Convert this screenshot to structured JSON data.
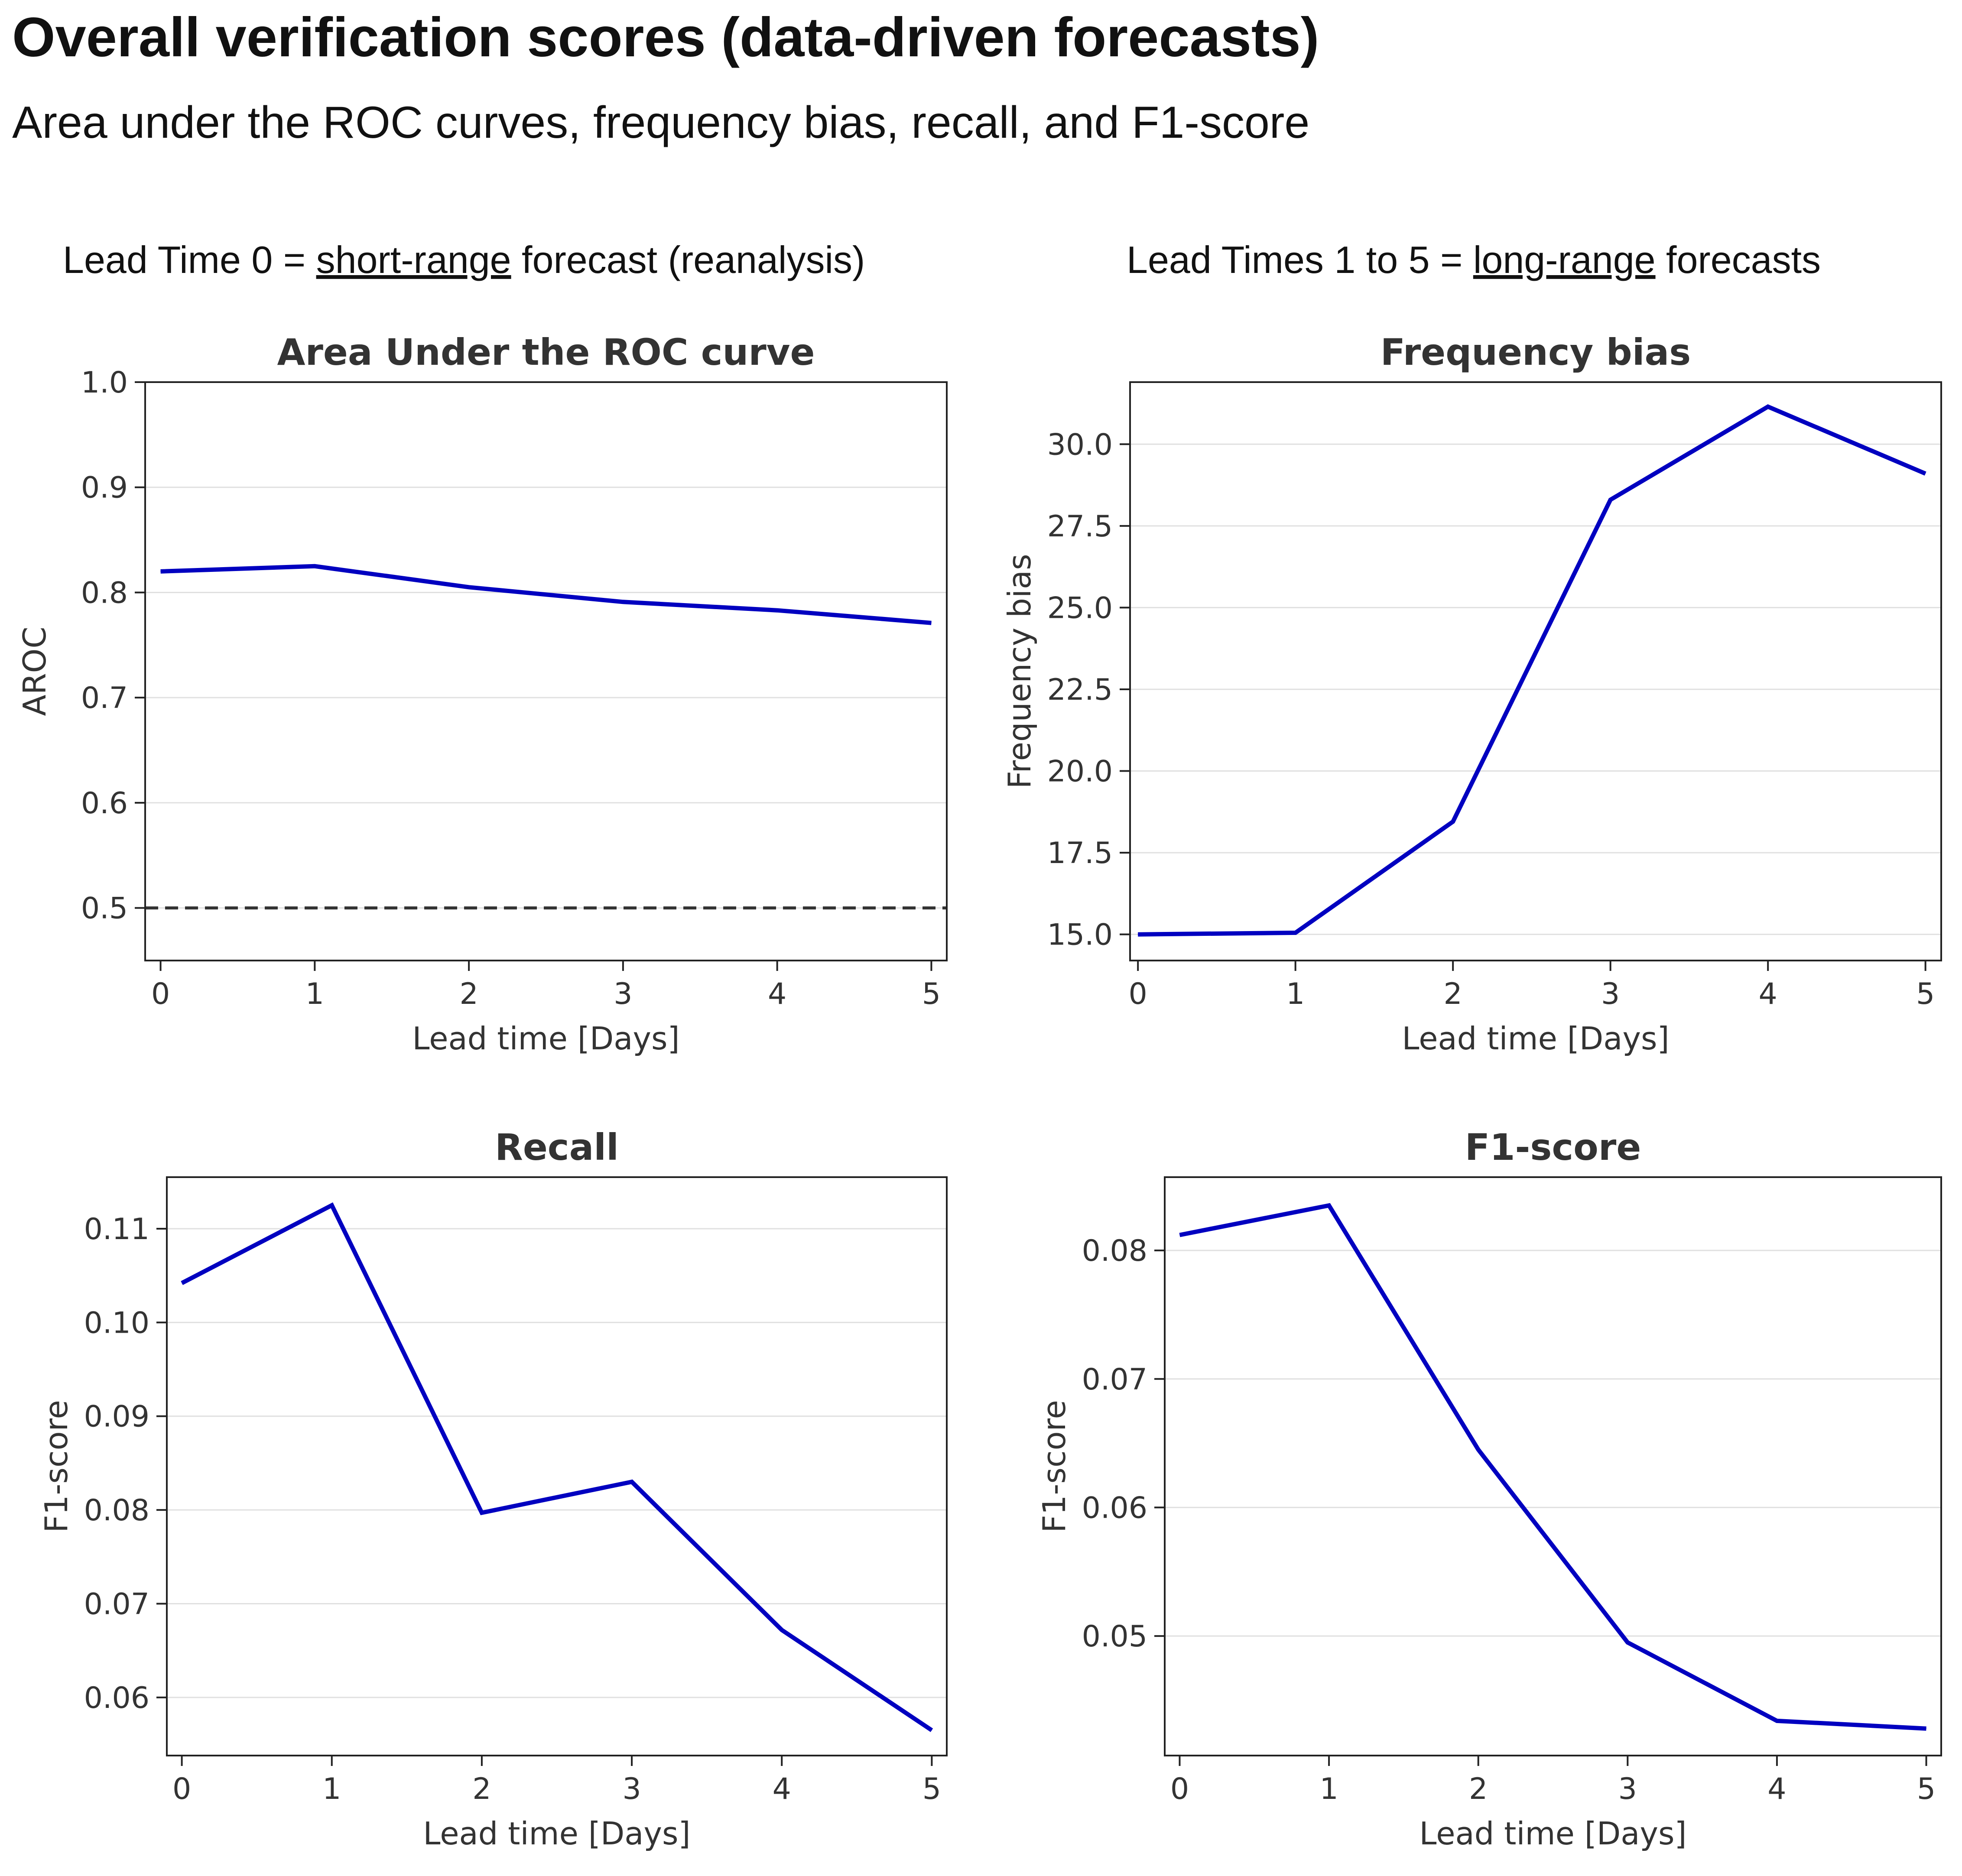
{
  "header": {
    "title": "Overall verification scores (data-driven forecasts)",
    "subtitle": "Area under the ROC curves, frequency bias, recall, and F1-score"
  },
  "notes": {
    "left": {
      "prefix": "Lead Time 0 = ",
      "emphasis": "short-range",
      "suffix": " forecast (reanalysis)"
    },
    "right": {
      "prefix": "Lead Times 1 to 5 = ",
      "emphasis": "long-range",
      "suffix": " forecasts"
    }
  },
  "colors": {
    "line": "#0000c0",
    "reference": "#333333",
    "grid": "#e0e0e0",
    "frame": "#222222"
  },
  "chart_data": [
    {
      "type": "line",
      "title": "Area Under the ROC curve",
      "xlabel": "Lead time [Days]",
      "ylabel": "AROC",
      "x": [
        0,
        1,
        2,
        3,
        4,
        5
      ],
      "series": [
        {
          "values": [
            0.82,
            0.825,
            0.805,
            0.791,
            0.783,
            0.771
          ]
        }
      ],
      "reference_line": {
        "y": 0.5,
        "style": "dashed"
      },
      "xlim": [
        -0.1,
        5.1
      ],
      "ylim": [
        0.45,
        1.0
      ],
      "xticks": [
        0,
        1,
        2,
        3,
        4,
        5
      ],
      "yticks": [
        0.5,
        0.6,
        0.7,
        0.8,
        0.9,
        1.0
      ],
      "ytick_labels": [
        "0.5",
        "0.6",
        "0.7",
        "0.8",
        "0.9",
        "1.0"
      ],
      "grid": "y"
    },
    {
      "type": "line",
      "title": "Frequency bias",
      "xlabel": "Lead time [Days]",
      "ylabel": "Frequency bias",
      "x": [
        0,
        1,
        2,
        3,
        4,
        5
      ],
      "series": [
        {
          "values": [
            15.0,
            15.05,
            18.45,
            28.3,
            31.15,
            29.1
          ]
        }
      ],
      "xlim": [
        -0.05,
        5.1
      ],
      "ylim": [
        14.2,
        31.9
      ],
      "xticks": [
        0,
        1,
        2,
        3,
        4,
        5
      ],
      "yticks": [
        15.0,
        17.5,
        20.0,
        22.5,
        25.0,
        27.5,
        30.0
      ],
      "ytick_labels": [
        "15.0",
        "17.5",
        "20.0",
        "22.5",
        "25.0",
        "27.5",
        "30.0"
      ],
      "grid": "y"
    },
    {
      "type": "line",
      "title": "Recall",
      "xlabel": "Lead time [Days]",
      "ylabel": "F1-score",
      "x": [
        0,
        1,
        2,
        3,
        4,
        5
      ],
      "series": [
        {
          "values": [
            0.1042,
            0.1125,
            0.0797,
            0.083,
            0.0672,
            0.0565
          ]
        }
      ],
      "xlim": [
        -0.1,
        5.1
      ],
      "ylim": [
        0.0538,
        0.1155
      ],
      "xticks": [
        0,
        1,
        2,
        3,
        4,
        5
      ],
      "yticks": [
        0.06,
        0.07,
        0.08,
        0.09,
        0.1,
        0.11
      ],
      "ytick_labels": [
        "0.06",
        "0.07",
        "0.08",
        "0.09",
        "0.10",
        "0.11"
      ],
      "grid": "y"
    },
    {
      "type": "line",
      "title": "F1-score",
      "xlabel": "Lead time [Days]",
      "ylabel": "F1-score",
      "x": [
        0,
        1,
        2,
        3,
        4,
        5
      ],
      "series": [
        {
          "values": [
            0.0812,
            0.0835,
            0.0645,
            0.0495,
            0.0434,
            0.0428
          ]
        }
      ],
      "xlim": [
        -0.1,
        5.1
      ],
      "ylim": [
        0.0407,
        0.0857
      ],
      "xticks": [
        0,
        1,
        2,
        3,
        4,
        5
      ],
      "yticks": [
        0.05,
        0.06,
        0.07,
        0.08
      ],
      "ytick_labels": [
        "0.05",
        "0.06",
        "0.07",
        "0.08"
      ],
      "grid": "y"
    }
  ]
}
